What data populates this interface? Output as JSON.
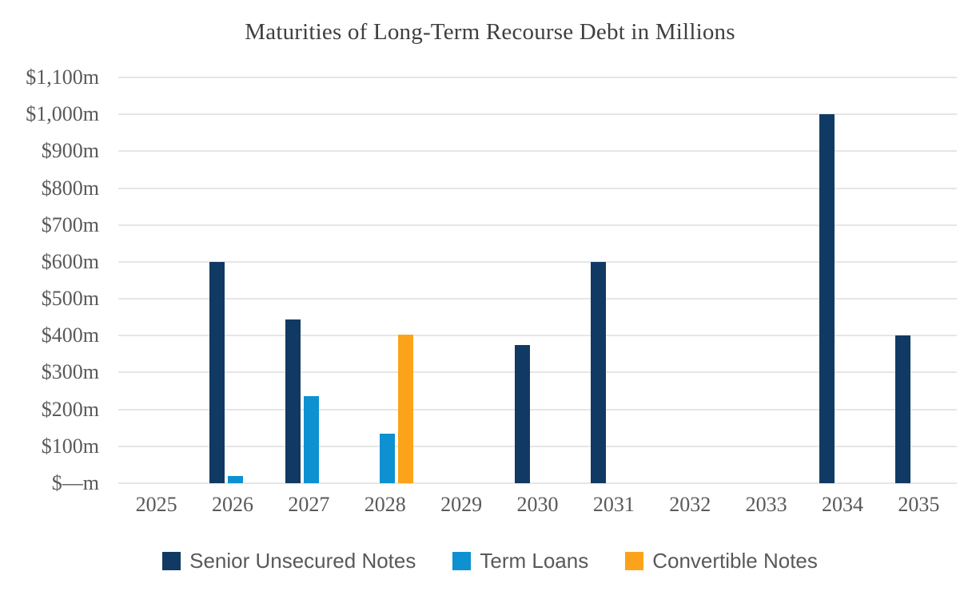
{
  "title": "Maturities of Long-Term Recourse Debt in Millions",
  "colors": {
    "senior_unsecured_notes": "#103A64",
    "term_loans": "#0E91D1",
    "convertible_notes": "#FCA31B",
    "gridline": "#E6E6E6",
    "axis_text": "#595959",
    "title_text": "#3F3F3F"
  },
  "chart_data": {
    "type": "bar",
    "title": "Maturities of Long-Term Recourse Debt in Millions",
    "categories": [
      "2025",
      "2026",
      "2027",
      "2028",
      "2029",
      "2030",
      "2031",
      "2032",
      "2033",
      "2034",
      "2035"
    ],
    "series": [
      {
        "name": "Senior Unsecured Notes",
        "color": "#103A64",
        "values": [
          0,
          600,
          445,
          0,
          0,
          375,
          600,
          0,
          0,
          1000,
          400
        ]
      },
      {
        "name": "Term Loans",
        "color": "#0E91D1",
        "values": [
          0,
          20,
          235,
          135,
          0,
          0,
          0,
          0,
          0,
          0,
          0
        ]
      },
      {
        "name": "Convertible Notes",
        "color": "#FCA31B",
        "values": [
          0,
          0,
          0,
          403,
          0,
          0,
          0,
          0,
          0,
          0,
          0
        ]
      }
    ],
    "xlabel": "",
    "ylabel": "",
    "y_tick_labels": [
      "$1,100m",
      "$1,000m",
      "$900m",
      "$800m",
      "$700m",
      "$600m",
      "$500m",
      "$400m",
      "$300m",
      "$200m",
      "$100m",
      "$—m"
    ],
    "ylim": [
      0,
      1100
    ],
    "y_tick_step": 100,
    "grid": true,
    "legend_position": "bottom"
  }
}
